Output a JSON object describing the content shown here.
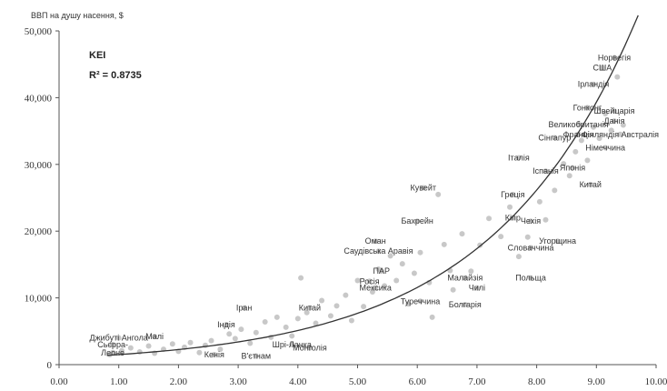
{
  "chart_data": {
    "type": "scatter",
    "ylabel": "ВВП на душу насення, $",
    "xlim": [
      0,
      10
    ],
    "ylim": [
      0,
      50000
    ],
    "x_ticks": [
      "0.00",
      "1.00",
      "2.00",
      "3.00",
      "4.00",
      "5.00",
      "6.00",
      "7.00",
      "8.00",
      "9.00",
      "10.00"
    ],
    "y_ticks": [
      "0",
      "10,000",
      "20,000",
      "30,000",
      "40,000",
      "50,000"
    ],
    "annotation": {
      "name": "KEI",
      "r2": "R² = 0.8735"
    },
    "labeled_points": [
      {
        "label": "Норвегія",
        "x": 9.3,
        "y": 46000
      },
      {
        "label": "США",
        "x": 9.1,
        "y": 44500
      },
      {
        "label": "Ірландія",
        "x": 8.95,
        "y": 42000
      },
      {
        "label": "Гонконг",
        "x": 8.85,
        "y": 38500
      },
      {
        "label": "Швейцарія",
        "x": 9.3,
        "y": 38000
      },
      {
        "label": "Данія",
        "x": 9.3,
        "y": 36500
      },
      {
        "label": "Великобританія",
        "x": 8.7,
        "y": 36000
      },
      {
        "label": "Франція",
        "x": 8.7,
        "y": 34500
      },
      {
        "label": "Фінляндія Австралія",
        "x": 9.4,
        "y": 34500
      },
      {
        "label": "Сінгапур",
        "x": 8.3,
        "y": 34000
      },
      {
        "label": "Німеччина",
        "x": 9.15,
        "y": 32500
      },
      {
        "label": "Італія",
        "x": 7.7,
        "y": 31000
      },
      {
        "label": "Японія",
        "x": 8.6,
        "y": 29500
      },
      {
        "label": "Іспанія",
        "x": 8.15,
        "y": 29000
      },
      {
        "label": "Кувейт",
        "x": 6.1,
        "y": 26500
      },
      {
        "label": "Китай",
        "x": 8.9,
        "y": 27000
      },
      {
        "label": "Греція",
        "x": 7.6,
        "y": 25500
      },
      {
        "label": "Бахрейн",
        "x": 6.0,
        "y": 21500
      },
      {
        "label": "Кіпр",
        "x": 7.6,
        "y": 22000
      },
      {
        "label": "Чехія",
        "x": 7.9,
        "y": 21500
      },
      {
        "label": "Угорщина",
        "x": 8.35,
        "y": 18500
      },
      {
        "label": "Словаччина",
        "x": 7.9,
        "y": 17500
      },
      {
        "label": "Саудівська Аравія",
        "x": 5.35,
        "y": 17000
      },
      {
        "label": "Оман",
        "x": 5.3,
        "y": 18500
      },
      {
        "label": "ПАР",
        "x": 5.4,
        "y": 14000
      },
      {
        "label": "Росія",
        "x": 5.2,
        "y": 12500
      },
      {
        "label": "Малайзія",
        "x": 6.8,
        "y": 13000
      },
      {
        "label": "Польща",
        "x": 7.9,
        "y": 13000
      },
      {
        "label": "Мексика",
        "x": 5.3,
        "y": 11500
      },
      {
        "label": "Іран",
        "x": 3.1,
        "y": 8500
      },
      {
        "label": "Китай",
        "x": 4.2,
        "y": 8500
      },
      {
        "label": "Чилі",
        "x": 7.0,
        "y": 11500
      },
      {
        "label": "Туреччина",
        "x": 6.05,
        "y": 9500
      },
      {
        "label": "Болгарія",
        "x": 6.8,
        "y": 9000
      },
      {
        "label": "Індія",
        "x": 2.8,
        "y": 6000
      },
      {
        "label": "Джибуті Ангола",
        "x": 1.0,
        "y": 4000
      },
      {
        "label": "Малі",
        "x": 1.6,
        "y": 4200
      },
      {
        "label": "Сьєрра-",
        "x": 0.9,
        "y": 3000
      },
      {
        "label": "Леоне",
        "x": 0.9,
        "y": 1800
      },
      {
        "label": "Шрі-Ланка",
        "x": 3.9,
        "y": 3000
      },
      {
        "label": "Монголія",
        "x": 4.2,
        "y": 2500
      },
      {
        "label": "Кенія",
        "x": 2.6,
        "y": 1500
      },
      {
        "label": "В'єтнам",
        "x": 3.3,
        "y": 1300
      }
    ],
    "other_points": [
      [
        0.85,
        1500
      ],
      [
        1.05,
        2100
      ],
      [
        1.2,
        2500
      ],
      [
        1.35,
        1900
      ],
      [
        1.5,
        2800
      ],
      [
        1.6,
        1700
      ],
      [
        1.75,
        2300
      ],
      [
        1.9,
        3100
      ],
      [
        2.0,
        2000
      ],
      [
        2.1,
        2600
      ],
      [
        2.2,
        3300
      ],
      [
        2.35,
        1800
      ],
      [
        2.45,
        2900
      ],
      [
        2.55,
        3600
      ],
      [
        2.7,
        2300
      ],
      [
        2.85,
        4600
      ],
      [
        2.95,
        3900
      ],
      [
        3.05,
        5300
      ],
      [
        3.2,
        3200
      ],
      [
        3.3,
        4800
      ],
      [
        3.45,
        6400
      ],
      [
        3.55,
        4100
      ],
      [
        3.65,
        7100
      ],
      [
        3.8,
        5600
      ],
      [
        3.9,
        4300
      ],
      [
        4.0,
        6900
      ],
      [
        4.05,
        13000
      ],
      [
        4.15,
        7800
      ],
      [
        4.3,
        6200
      ],
      [
        4.4,
        9600
      ],
      [
        4.55,
        7300
      ],
      [
        4.65,
        8800
      ],
      [
        4.8,
        10400
      ],
      [
        4.9,
        6600
      ],
      [
        5.0,
        12600
      ],
      [
        5.1,
        8700
      ],
      [
        5.25,
        10900
      ],
      [
        5.35,
        14300
      ],
      [
        5.45,
        11800
      ],
      [
        5.55,
        16300
      ],
      [
        5.65,
        12600
      ],
      [
        5.75,
        15100
      ],
      [
        5.85,
        9100
      ],
      [
        5.95,
        13700
      ],
      [
        6.05,
        16800
      ],
      [
        6.2,
        12300
      ],
      [
        6.25,
        7100
      ],
      [
        6.35,
        25500
      ],
      [
        6.45,
        18000
      ],
      [
        6.55,
        14100
      ],
      [
        6.6,
        11200
      ],
      [
        6.75,
        19600
      ],
      [
        6.9,
        14000
      ],
      [
        7.05,
        17900
      ],
      [
        7.2,
        21900
      ],
      [
        7.4,
        19200
      ],
      [
        7.55,
        23600
      ],
      [
        7.7,
        16200
      ],
      [
        7.85,
        19100
      ],
      [
        8.05,
        24400
      ],
      [
        8.15,
        21700
      ],
      [
        8.3,
        26100
      ],
      [
        8.45,
        30100
      ],
      [
        8.55,
        28300
      ],
      [
        8.65,
        31900
      ],
      [
        8.75,
        33600
      ],
      [
        8.85,
        30600
      ],
      [
        8.95,
        35600
      ],
      [
        9.05,
        33900
      ],
      [
        9.15,
        37600
      ],
      [
        9.25,
        35100
      ],
      [
        9.35,
        43100
      ],
      [
        9.45,
        35900
      ]
    ],
    "trendline": {
      "type": "exponential",
      "a": 1000,
      "b": 0.408,
      "x_range": [
        0.8,
        9.7
      ]
    },
    "grid": false,
    "colors": {
      "points": "#c8c8c8",
      "trend": "#333333",
      "axis": "#555555",
      "text": "#333333"
    }
  }
}
